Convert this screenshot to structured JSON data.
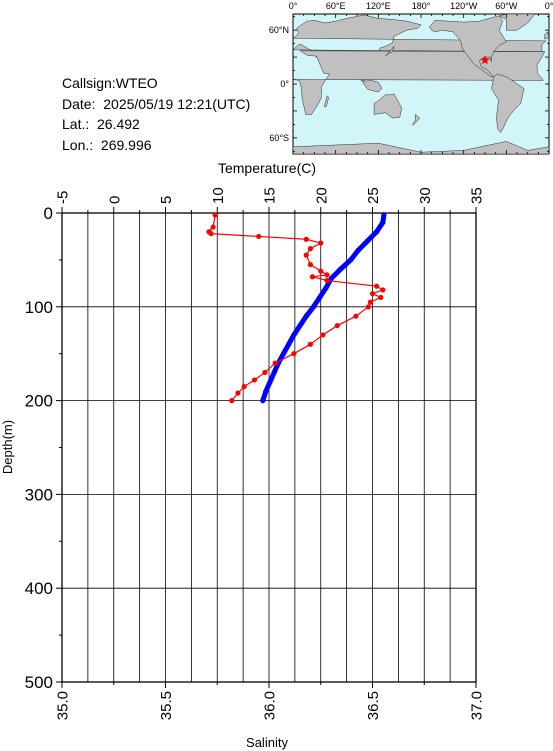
{
  "info": {
    "callsign": "Callsign:WTEO",
    "date": "Date:  2025/05/19 12:21(UTC)",
    "lat": "Lat.:  26.492",
    "lon": "Lon.:  269.996"
  },
  "map": {
    "lon_labels": [
      "0°",
      "60°E",
      "120°E",
      "180°",
      "120°W",
      "60°W",
      "0°"
    ],
    "lat_labels": [
      "60°N",
      "0°",
      "60°S"
    ],
    "station": {
      "lat": 26.492,
      "lon": 269.996
    },
    "colors": {
      "ocean": "#d2f5fa",
      "land": "#c0c0c0",
      "station": "#ff0000"
    }
  },
  "chart_data": {
    "type": "line",
    "ylabel": "Depth(m)",
    "ylim": [
      500,
      0
    ],
    "yticks": [
      0,
      100,
      200,
      300,
      400,
      500
    ],
    "top_axis": {
      "label": "Temperature(C)",
      "lim": [
        -5,
        35
      ],
      "ticks": [
        "-5",
        "0",
        "5",
        "10",
        "15",
        "20",
        "25",
        "30",
        "35"
      ]
    },
    "bottom_axis": {
      "label": "Salinity",
      "lim": [
        35.0,
        37.0
      ],
      "ticks": [
        "35.0",
        "35.5",
        "36.0",
        "36.5",
        "37.0"
      ]
    },
    "grid": true,
    "series": [
      {
        "axis": "top",
        "color": "#0000ff",
        "depth": [
          2,
          10,
          20,
          30,
          40,
          50,
          60,
          70,
          80,
          90,
          100,
          110,
          120,
          130,
          140,
          150,
          160,
          170,
          180,
          190,
          200
        ],
        "values": [
          26.1,
          26.0,
          25.4,
          24.5,
          23.6,
          22.9,
          21.9,
          21.0,
          20.5,
          19.9,
          19.3,
          18.6,
          18.0,
          17.4,
          16.9,
          16.4,
          15.9,
          15.5,
          15.1,
          14.7,
          14.4
        ]
      },
      {
        "axis": "bottom",
        "color": "#ff0000",
        "depth": [
          2,
          15,
          20,
          22,
          25,
          28,
          32,
          38,
          45,
          55,
          62,
          66,
          68,
          72,
          78,
          82,
          86,
          90,
          95,
          100,
          110,
          120,
          130,
          140,
          150,
          160,
          170,
          178,
          185,
          192,
          200
        ],
        "values": [
          35.74,
          35.73,
          35.71,
          35.72,
          35.95,
          36.18,
          36.25,
          36.2,
          36.18,
          36.2,
          36.25,
          36.28,
          36.21,
          36.28,
          36.52,
          36.55,
          36.5,
          36.54,
          36.49,
          36.48,
          36.42,
          36.33,
          36.26,
          36.2,
          36.12,
          36.03,
          35.98,
          35.93,
          35.88,
          35.85,
          35.82
        ]
      }
    ]
  }
}
